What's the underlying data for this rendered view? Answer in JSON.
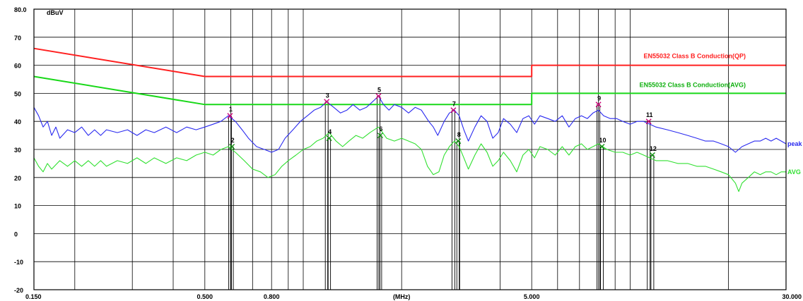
{
  "chart_data": {
    "type": "line",
    "ylabel": "dBuV",
    "xlabel": "(MHz)",
    "x_scale": "log",
    "xlim": [
      0.15,
      30
    ],
    "ylim": [
      -20,
      80
    ],
    "y_ticks": [
      {
        "v": 80,
        "label": "80.0"
      },
      {
        "v": 70,
        "label": "70"
      },
      {
        "v": 60,
        "label": "60"
      },
      {
        "v": 50,
        "label": "50"
      },
      {
        "v": 40,
        "label": "40"
      },
      {
        "v": 30,
        "label": "30"
      },
      {
        "v": 20,
        "label": "20"
      },
      {
        "v": 10,
        "label": "10"
      },
      {
        "v": 0,
        "label": "0"
      },
      {
        "v": -10,
        "label": "-10"
      },
      {
        "v": -20,
        "label": "-20"
      }
    ],
    "x_ticks": [
      {
        "v": 0.15,
        "label": "0.150"
      },
      {
        "v": 0.5,
        "label": "0.500"
      },
      {
        "v": 0.8,
        "label": "0.800"
      },
      {
        "v": 2.0,
        "label": "(MHz)"
      },
      {
        "v": 5.0,
        "label": "5.000"
      },
      {
        "v": 30,
        "label": "30.000"
      }
    ],
    "x_gridlines": [
      0.2,
      0.3,
      0.4,
      0.5,
      0.6,
      0.7,
      0.8,
      0.9,
      1,
      2,
      3,
      4,
      5,
      6,
      7,
      8,
      9,
      10,
      20
    ],
    "grid": true,
    "colors": {
      "qp_limit": "#ff2020",
      "avg_limit": "#18d818",
      "peak": "#2a2af0",
      "avg": "#30e030",
      "grid": "#000000",
      "marker_peak": "#cc0077",
      "marker_avg": "#109010",
      "marker_line": "#000000"
    },
    "series": [
      {
        "name": "EN55032 Class B Conduction(QP)",
        "kind": "limit",
        "color_key": "qp_limit",
        "points": [
          [
            0.15,
            66
          ],
          [
            0.5,
            56
          ],
          [
            5.0,
            56
          ],
          [
            5.0,
            60
          ],
          [
            30,
            60
          ]
        ]
      },
      {
        "name": "EN55032 Class B Conduction(AVG)",
        "kind": "limit",
        "color_key": "avg_limit",
        "points": [
          [
            0.15,
            56
          ],
          [
            0.5,
            46
          ],
          [
            5.0,
            46
          ],
          [
            5.0,
            50
          ],
          [
            30,
            50
          ]
        ]
      },
      {
        "name": "peak",
        "kind": "trace",
        "color_key": "peak",
        "points": [
          [
            0.15,
            45
          ],
          [
            0.155,
            42
          ],
          [
            0.16,
            38
          ],
          [
            0.165,
            40
          ],
          [
            0.17,
            35
          ],
          [
            0.175,
            38
          ],
          [
            0.18,
            34
          ],
          [
            0.19,
            37
          ],
          [
            0.2,
            36
          ],
          [
            0.21,
            38
          ],
          [
            0.22,
            35
          ],
          [
            0.23,
            37
          ],
          [
            0.24,
            35
          ],
          [
            0.25,
            37
          ],
          [
            0.27,
            36
          ],
          [
            0.29,
            37
          ],
          [
            0.31,
            35
          ],
          [
            0.33,
            37
          ],
          [
            0.35,
            36
          ],
          [
            0.38,
            38
          ],
          [
            0.41,
            36
          ],
          [
            0.44,
            38
          ],
          [
            0.47,
            37
          ],
          [
            0.5,
            38
          ],
          [
            0.53,
            39
          ],
          [
            0.56,
            40
          ],
          [
            0.59,
            42
          ],
          [
            0.62,
            40
          ],
          [
            0.65,
            37
          ],
          [
            0.68,
            34
          ],
          [
            0.72,
            31
          ],
          [
            0.76,
            30
          ],
          [
            0.8,
            29
          ],
          [
            0.84,
            30
          ],
          [
            0.88,
            34
          ],
          [
            0.93,
            37
          ],
          [
            0.98,
            40
          ],
          [
            1.03,
            42
          ],
          [
            1.08,
            44
          ],
          [
            1.13,
            45
          ],
          [
            1.18,
            47
          ],
          [
            1.24,
            45
          ],
          [
            1.3,
            43
          ],
          [
            1.36,
            44
          ],
          [
            1.42,
            46
          ],
          [
            1.49,
            44
          ],
          [
            1.56,
            45
          ],
          [
            1.63,
            47
          ],
          [
            1.7,
            49
          ],
          [
            1.76,
            46
          ],
          [
            1.83,
            44
          ],
          [
            1.9,
            46
          ],
          [
            2.0,
            45
          ],
          [
            2.1,
            43
          ],
          [
            2.2,
            45
          ],
          [
            2.3,
            44
          ],
          [
            2.42,
            40
          ],
          [
            2.5,
            38
          ],
          [
            2.58,
            35
          ],
          [
            2.7,
            40
          ],
          [
            2.8,
            43
          ],
          [
            2.9,
            44
          ],
          [
            3.0,
            42
          ],
          [
            3.1,
            37
          ],
          [
            3.2,
            33
          ],
          [
            3.35,
            38
          ],
          [
            3.5,
            42
          ],
          [
            3.65,
            40
          ],
          [
            3.8,
            34
          ],
          [
            3.95,
            36
          ],
          [
            4.1,
            41
          ],
          [
            4.3,
            39
          ],
          [
            4.5,
            36
          ],
          [
            4.7,
            41
          ],
          [
            4.9,
            42
          ],
          [
            5.1,
            39
          ],
          [
            5.3,
            42
          ],
          [
            5.6,
            41
          ],
          [
            5.9,
            40
          ],
          [
            6.2,
            42
          ],
          [
            6.5,
            38
          ],
          [
            6.8,
            41
          ],
          [
            7.1,
            42
          ],
          [
            7.4,
            41
          ],
          [
            7.7,
            43
          ],
          [
            8.0,
            44
          ],
          [
            8.3,
            42
          ],
          [
            8.7,
            41
          ],
          [
            9.1,
            41
          ],
          [
            9.5,
            40
          ],
          [
            10.0,
            39
          ],
          [
            10.5,
            40
          ],
          [
            11.0,
            40
          ],
          [
            11.5,
            39
          ],
          [
            12.0,
            38
          ],
          [
            13.0,
            37
          ],
          [
            14.0,
            36
          ],
          [
            15.0,
            35
          ],
          [
            16.0,
            34
          ],
          [
            17.0,
            33
          ],
          [
            18.0,
            33
          ],
          [
            19.0,
            32
          ],
          [
            20.0,
            31
          ],
          [
            21.0,
            29
          ],
          [
            22.0,
            31
          ],
          [
            23.0,
            32
          ],
          [
            24.0,
            33
          ],
          [
            25.0,
            33
          ],
          [
            26.0,
            34
          ],
          [
            27.0,
            33
          ],
          [
            28.0,
            34
          ],
          [
            29.0,
            33
          ],
          [
            30.0,
            32
          ]
        ]
      },
      {
        "name": "AVG",
        "kind": "trace",
        "color_key": "avg",
        "points": [
          [
            0.15,
            27
          ],
          [
            0.155,
            24
          ],
          [
            0.16,
            22
          ],
          [
            0.165,
            25
          ],
          [
            0.17,
            23
          ],
          [
            0.18,
            26
          ],
          [
            0.19,
            24
          ],
          [
            0.2,
            26
          ],
          [
            0.21,
            24
          ],
          [
            0.22,
            26
          ],
          [
            0.23,
            24
          ],
          [
            0.24,
            26
          ],
          [
            0.25,
            24
          ],
          [
            0.27,
            26
          ],
          [
            0.29,
            25
          ],
          [
            0.31,
            27
          ],
          [
            0.33,
            25
          ],
          [
            0.35,
            27
          ],
          [
            0.38,
            25
          ],
          [
            0.41,
            27
          ],
          [
            0.44,
            26
          ],
          [
            0.47,
            28
          ],
          [
            0.5,
            29
          ],
          [
            0.53,
            28
          ],
          [
            0.56,
            30
          ],
          [
            0.59,
            31
          ],
          [
            0.62,
            29
          ],
          [
            0.66,
            26
          ],
          [
            0.7,
            23
          ],
          [
            0.74,
            22
          ],
          [
            0.78,
            20
          ],
          [
            0.82,
            21
          ],
          [
            0.86,
            24
          ],
          [
            0.9,
            26
          ],
          [
            0.95,
            28
          ],
          [
            1.0,
            30
          ],
          [
            1.05,
            31
          ],
          [
            1.1,
            33
          ],
          [
            1.15,
            34
          ],
          [
            1.2,
            36
          ],
          [
            1.26,
            33
          ],
          [
            1.32,
            31
          ],
          [
            1.38,
            33
          ],
          [
            1.45,
            35
          ],
          [
            1.52,
            34
          ],
          [
            1.6,
            36
          ],
          [
            1.7,
            38
          ],
          [
            1.8,
            34
          ],
          [
            1.9,
            33
          ],
          [
            2.0,
            34
          ],
          [
            2.1,
            33
          ],
          [
            2.2,
            32
          ],
          [
            2.3,
            30
          ],
          [
            2.4,
            24
          ],
          [
            2.5,
            21
          ],
          [
            2.6,
            22
          ],
          [
            2.7,
            28
          ],
          [
            2.8,
            31
          ],
          [
            2.9,
            33
          ],
          [
            3.0,
            31
          ],
          [
            3.1,
            27
          ],
          [
            3.2,
            23
          ],
          [
            3.35,
            28
          ],
          [
            3.5,
            32
          ],
          [
            3.65,
            29
          ],
          [
            3.8,
            24
          ],
          [
            3.95,
            26
          ],
          [
            4.1,
            29
          ],
          [
            4.3,
            26
          ],
          [
            4.5,
            22
          ],
          [
            4.7,
            28
          ],
          [
            4.9,
            30
          ],
          [
            5.1,
            27
          ],
          [
            5.3,
            31
          ],
          [
            5.6,
            30
          ],
          [
            5.9,
            28
          ],
          [
            6.2,
            31
          ],
          [
            6.5,
            28
          ],
          [
            6.8,
            31
          ],
          [
            7.1,
            32
          ],
          [
            7.4,
            30
          ],
          [
            7.7,
            31
          ],
          [
            8.0,
            32
          ],
          [
            8.5,
            30
          ],
          [
            9.0,
            29
          ],
          [
            9.5,
            29
          ],
          [
            10.0,
            28
          ],
          [
            10.5,
            29
          ],
          [
            11.0,
            28
          ],
          [
            12.0,
            26
          ],
          [
            13.0,
            26
          ],
          [
            14.0,
            25
          ],
          [
            15.0,
            25
          ],
          [
            16.0,
            24
          ],
          [
            17.0,
            24
          ],
          [
            18.0,
            23
          ],
          [
            19.0,
            22
          ],
          [
            20.0,
            21
          ],
          [
            21.0,
            18
          ],
          [
            21.5,
            15
          ],
          [
            22.0,
            18
          ],
          [
            23.0,
            20
          ],
          [
            24.0,
            22
          ],
          [
            25.0,
            21
          ],
          [
            26.0,
            22
          ],
          [
            27.0,
            22
          ],
          [
            28.0,
            21
          ],
          [
            29.0,
            22
          ],
          [
            30.0,
            22
          ]
        ]
      }
    ],
    "markers": [
      {
        "label": "1",
        "x": 0.597,
        "y": 42,
        "kind": "peak"
      },
      {
        "label": "2",
        "x": 0.605,
        "y": 31,
        "kind": "avg"
      },
      {
        "label": "3",
        "x": 1.18,
        "y": 47,
        "kind": "peak"
      },
      {
        "label": "4",
        "x": 1.2,
        "y": 34,
        "kind": "avg"
      },
      {
        "label": "5",
        "x": 1.7,
        "y": 49,
        "kind": "peak"
      },
      {
        "label": "6",
        "x": 1.72,
        "y": 35,
        "kind": "avg"
      },
      {
        "label": "7",
        "x": 2.88,
        "y": 44,
        "kind": "peak"
      },
      {
        "label": "8",
        "x": 2.98,
        "y": 33,
        "kind": "avg"
      },
      {
        "label": "9",
        "x": 8.0,
        "y": 46,
        "kind": "peak"
      },
      {
        "label": "10",
        "x": 8.2,
        "y": 31,
        "kind": "avg"
      },
      {
        "label": "11",
        "x": 11.4,
        "y": 40,
        "kind": "peak"
      },
      {
        "label": "12",
        "x": 11.7,
        "y": 28,
        "kind": "avg"
      }
    ]
  }
}
